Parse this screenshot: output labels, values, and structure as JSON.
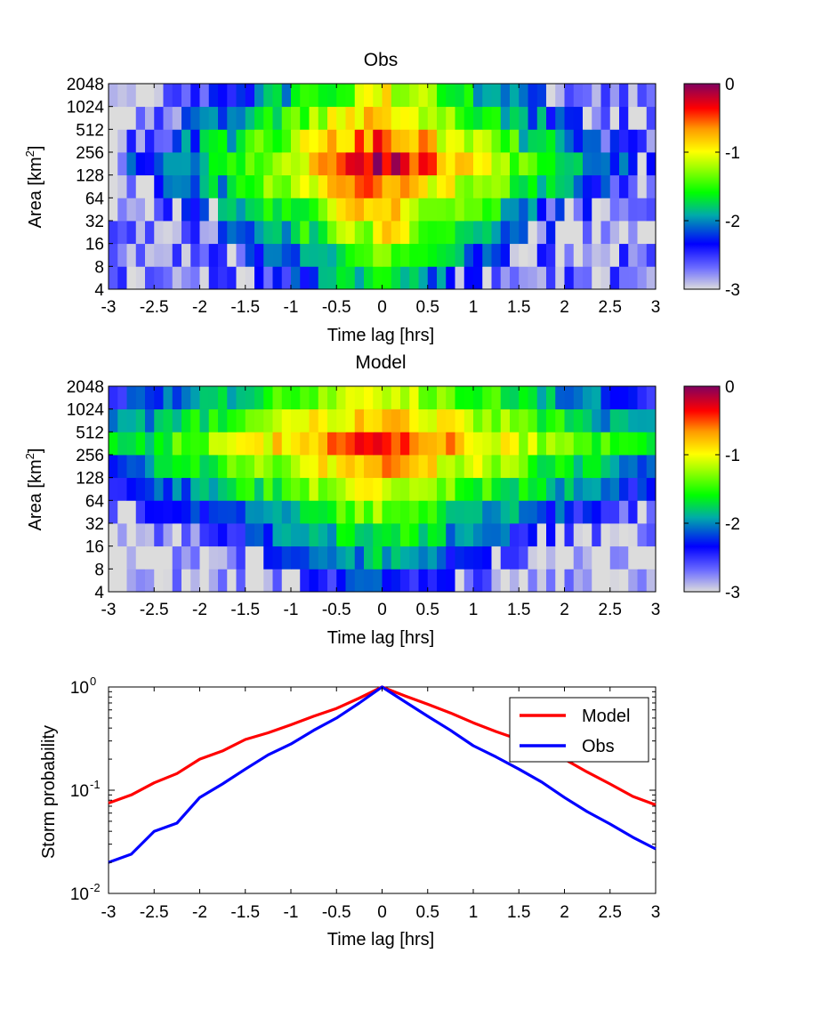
{
  "chart_data": [
    {
      "type": "heatmap",
      "title": "Obs",
      "xlabel": "Time lag [hrs]",
      "ylabel": "Area [km",
      "ylabel_sup": "2",
      "ylabel_end": "]",
      "xlim": [
        -3,
        3
      ],
      "xticks": [
        -3,
        -2.5,
        -2,
        -1.5,
        -1,
        -0.5,
        0,
        0.5,
        1,
        1.5,
        2,
        2.5,
        3
      ],
      "xtick_labels": [
        "-3",
        "-2.5",
        "-2",
        "-1.5",
        "-1",
        "-0.5",
        "0",
        "0.5",
        "1",
        "1.5",
        "2",
        "2.5",
        "3"
      ],
      "yticks": [
        "4",
        "8",
        "16",
        "32",
        "64",
        "128",
        "256",
        "512",
        "1024",
        "2048"
      ],
      "colorbar": {
        "min": -3,
        "max": 0,
        "ticks": [
          "0",
          "-1",
          "-2",
          "-3"
        ]
      },
      "grid": {
        "x_bins": 60,
        "area_bins": [
          4,
          8,
          16,
          32,
          64,
          128,
          256,
          512,
          1024
        ]
      },
      "value_profile": {
        "peak": -0.2,
        "time_decay_per_hr": 0.78,
        "peak_area": 128,
        "area_decay_per_octave": 0.45,
        "floor": -2.4,
        "noise": 0.28
      }
    },
    {
      "type": "heatmap",
      "title": "Model",
      "xlabel": "Time lag [hrs]",
      "ylabel": "Area [km",
      "ylabel_sup": "2",
      "ylabel_end": "]",
      "xlim": [
        -3,
        3
      ],
      "xticks": [
        -3,
        -2.5,
        -2,
        -1.5,
        -1,
        -0.5,
        0,
        0.5,
        1,
        1.5,
        2,
        2.5,
        3
      ],
      "xtick_labels": [
        "-3",
        "-2.5",
        "-2",
        "-1.5",
        "-1",
        "-0.5",
        "0",
        "0.5",
        "1",
        "1.5",
        "2",
        "2.5",
        "3"
      ],
      "yticks": [
        "4",
        "8",
        "16",
        "32",
        "64",
        "128",
        "256",
        "512",
        "1024",
        "2048"
      ],
      "colorbar": {
        "min": -3,
        "max": 0,
        "ticks": [
          "0",
          "-1",
          "-2",
          "-3"
        ]
      },
      "grid": {
        "x_bins": 60,
        "area_bins": [
          4,
          8,
          16,
          32,
          64,
          128,
          256,
          512,
          1024
        ]
      },
      "value_profile": {
        "peak": -0.35,
        "time_decay_per_hr": 0.5,
        "peak_area": 256,
        "area_decay_per_octave": 0.5,
        "floor": -2.6,
        "noise": 0.22
      }
    },
    {
      "type": "line",
      "ylabel": "Storm probability",
      "xlabel": "Time lag [hrs]",
      "xlim": [
        -3,
        3
      ],
      "yscale": "log",
      "ylim": [
        0.01,
        1
      ],
      "xticks": [
        -3,
        -2.5,
        -2,
        -1.5,
        -1,
        -0.5,
        0,
        0.5,
        1,
        1.5,
        2,
        2.5,
        3
      ],
      "xtick_labels": [
        "-3",
        "-2.5",
        "-2",
        "-1.5",
        "-1",
        "-0.5",
        "0",
        "0.5",
        "1",
        "1.5",
        "2",
        "2.5",
        "3"
      ],
      "ytick_base": [
        "10",
        "10",
        "10"
      ],
      "ytick_exp": [
        "-2",
        "-1",
        "0"
      ],
      "legend": "top-right",
      "x": [
        -3,
        -2.75,
        -2.5,
        -2.25,
        -2,
        -1.75,
        -1.5,
        -1.25,
        -1,
        -0.75,
        -0.5,
        -0.25,
        0,
        0.25,
        0.5,
        0.75,
        1,
        1.25,
        1.5,
        1.75,
        2,
        2.25,
        2.5,
        2.75,
        3
      ],
      "series": [
        {
          "name": "Model",
          "color": "#ff0000",
          "values": [
            0.075,
            0.09,
            0.118,
            0.145,
            0.2,
            0.24,
            0.31,
            0.36,
            0.43,
            0.52,
            0.62,
            0.78,
            1.0,
            0.82,
            0.68,
            0.56,
            0.45,
            0.37,
            0.31,
            0.26,
            0.2,
            0.15,
            0.115,
            0.087,
            0.072
          ]
        },
        {
          "name": "Obs",
          "color": "#0000ff",
          "values": [
            0.02,
            0.024,
            0.04,
            0.048,
            0.085,
            0.115,
            0.16,
            0.22,
            0.28,
            0.38,
            0.5,
            0.7,
            1.0,
            0.72,
            0.52,
            0.38,
            0.27,
            0.21,
            0.16,
            0.12,
            0.085,
            0.062,
            0.047,
            0.035,
            0.027
          ]
        }
      ]
    }
  ]
}
